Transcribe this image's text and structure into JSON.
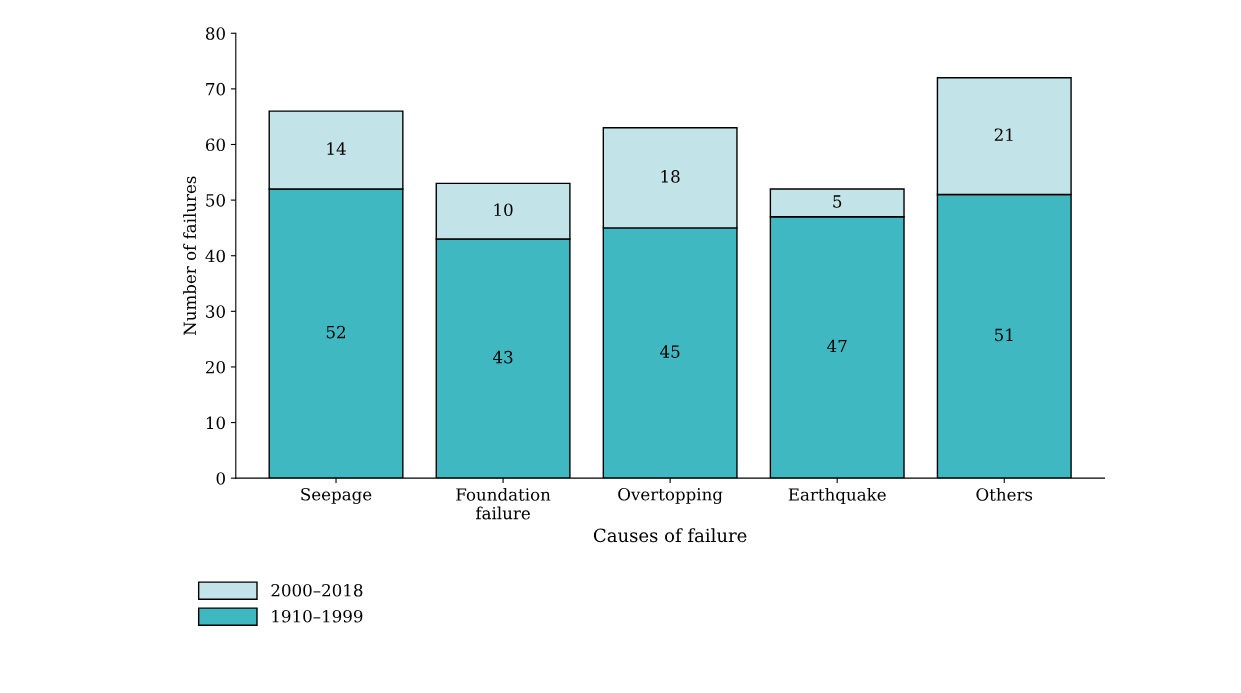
{
  "chart_data": {
    "type": "bar",
    "stacked": true,
    "xlabel": "Causes of failure",
    "ylabel": "Number of failures",
    "categories": [
      "Seepage",
      "Foundation\nfailure",
      "Overtopping",
      "Earthquake",
      "Others"
    ],
    "series": [
      {
        "name": "1910–1999",
        "color": "#3fb8c2",
        "values": [
          52,
          43,
          45,
          47,
          51
        ]
      },
      {
        "name": "2000–2018",
        "color": "#c2e3e8",
        "values": [
          14,
          10,
          18,
          5,
          21
        ]
      }
    ],
    "ylim": [
      0,
      80
    ],
    "yticks": [
      0,
      10,
      20,
      30,
      40,
      50,
      60,
      70,
      80
    ],
    "grid": false,
    "legend": "bottom left",
    "data_labels": true
  }
}
